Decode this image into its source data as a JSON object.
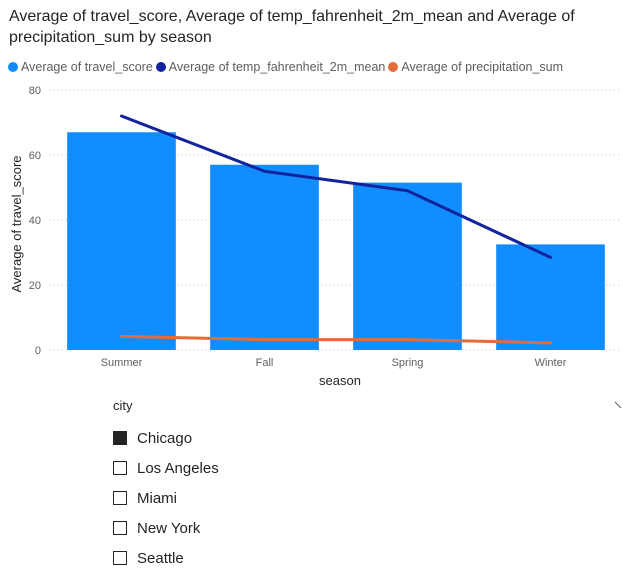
{
  "chart_data": {
    "type": "bar",
    "title": "Average of travel_score, Average of temp_fahrenheit_2m_mean and Average of precipitation_sum by season",
    "xlabel": "season",
    "ylabel": "Average of travel_score",
    "categories": [
      "Summer",
      "Fall",
      "Spring",
      "Winter"
    ],
    "ylim": [
      0,
      80
    ],
    "yticks": [
      0,
      20,
      40,
      60,
      80
    ],
    "grid": true,
    "legend_position": "top-left",
    "series": [
      {
        "name": "Average of travel_score",
        "type": "bar",
        "color": "#118DFF",
        "values": [
          67,
          57,
          51.5,
          32.5
        ]
      },
      {
        "name": "Average of temp_fahrenheit_2m_mean",
        "type": "line",
        "color": "#12239E",
        "values": [
          72,
          55,
          49,
          28.5
        ]
      },
      {
        "name": "Average of precipitation_sum",
        "type": "line",
        "color": "#E66C37",
        "values": [
          4.2,
          3.2,
          3.2,
          2.2
        ]
      }
    ]
  },
  "slicer": {
    "header": "city",
    "items": [
      {
        "label": "Chicago",
        "checked": true
      },
      {
        "label": "Los Angeles",
        "checked": false
      },
      {
        "label": "Miami",
        "checked": false
      },
      {
        "label": "New York",
        "checked": false
      },
      {
        "label": "Seattle",
        "checked": false
      }
    ]
  }
}
